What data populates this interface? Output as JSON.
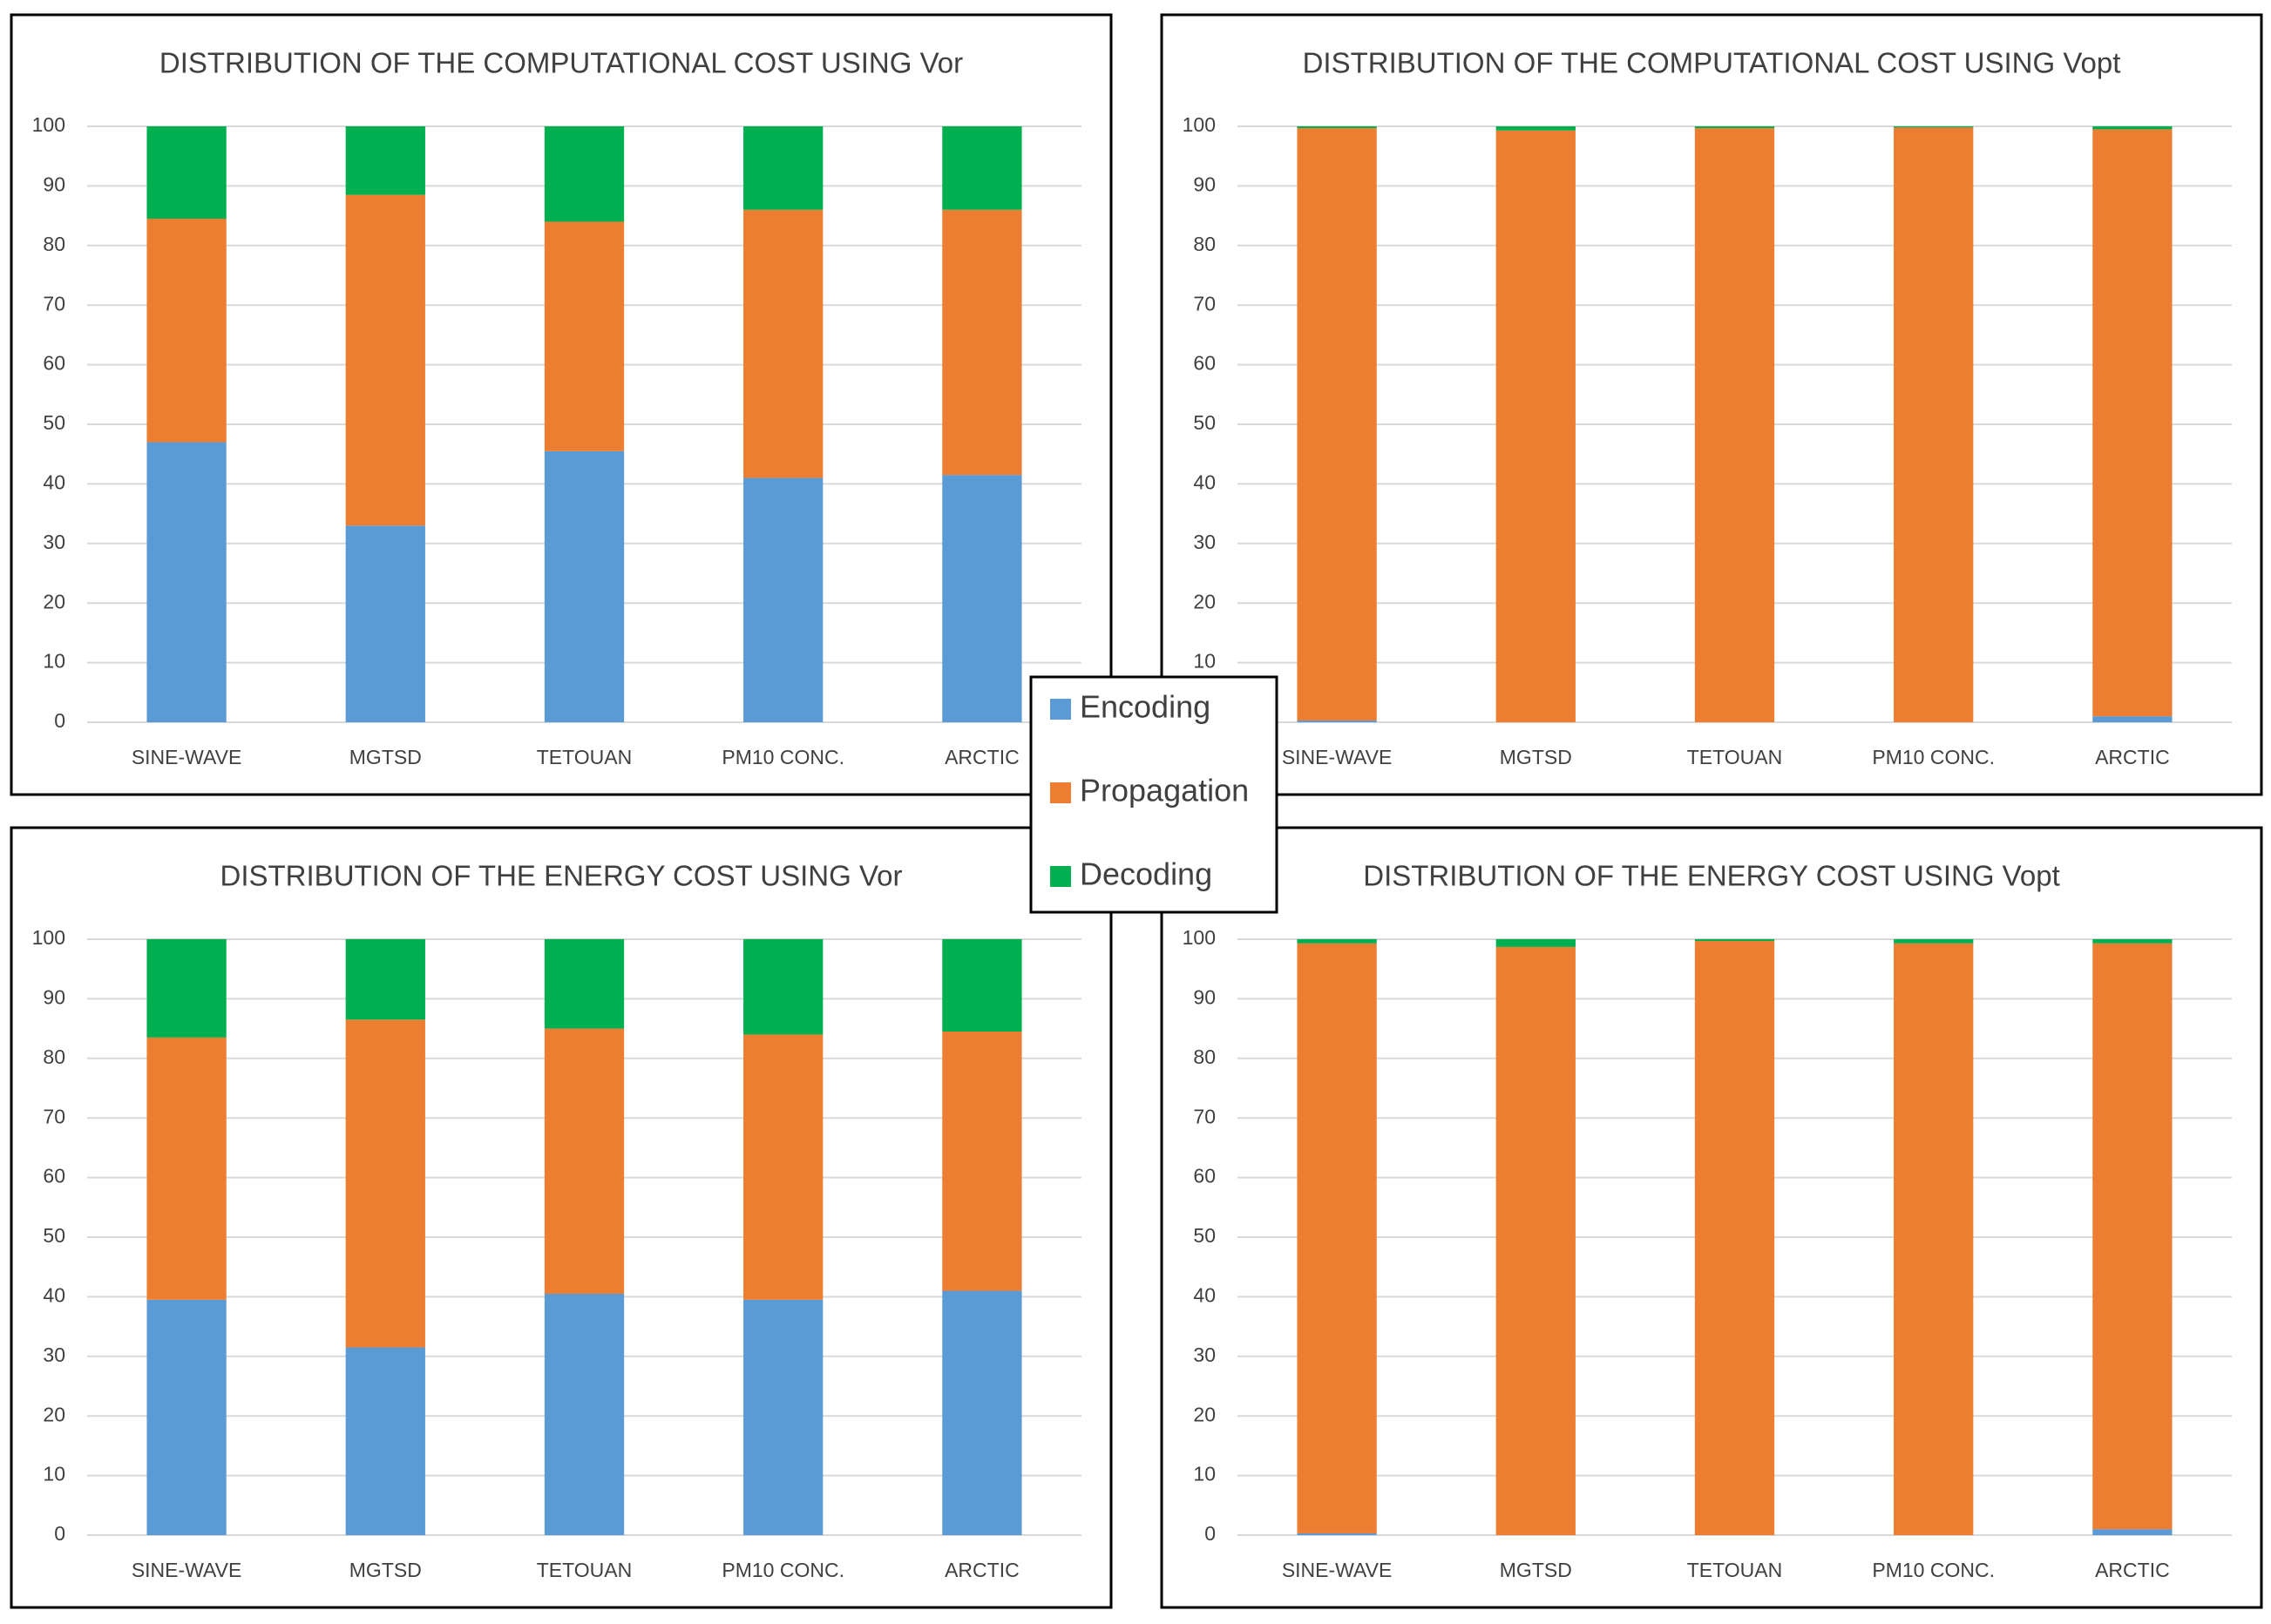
{
  "chart_data": [
    {
      "type": "bar",
      "stacked": true,
      "title": "DISTRIBUTION OF THE COMPUTATIONAL COST USING Vor",
      "categories": [
        "SINE-WAVE",
        "MGTSD",
        "TETOUAN",
        "PM10 CONC.",
        "ARCTIC"
      ],
      "series": [
        {
          "name": "Encoding",
          "color": "#5b9bd5",
          "values": [
            47,
            33,
            45.5,
            41,
            41.5
          ]
        },
        {
          "name": "Propagation",
          "color": "#ed7d31",
          "values": [
            37.5,
            55.5,
            38.5,
            45,
            44.5
          ]
        },
        {
          "name": "Decoding",
          "color": "#00b050",
          "values": [
            15.5,
            11.5,
            16,
            14,
            14
          ]
        }
      ],
      "ylim": [
        0,
        100
      ],
      "yticks": [
        0,
        10,
        20,
        30,
        40,
        50,
        60,
        70,
        80,
        90,
        100
      ],
      "grid": true
    },
    {
      "type": "bar",
      "stacked": true,
      "title": "DISTRIBUTION OF THE COMPUTATIONAL COST USING Vopt",
      "categories": [
        "SINE-WAVE",
        "MGTSD",
        "TETOUAN",
        "PM10 CONC.",
        "ARCTIC"
      ],
      "series": [
        {
          "color": "#5b9bd5",
          "values": [
            0.3,
            0,
            0,
            0,
            1
          ]
        },
        {
          "color": "#ed7d31",
          "values": [
            99.4,
            99.3,
            99.7,
            99.8,
            98.5
          ]
        },
        {
          "color": "#00b050",
          "values": [
            0.3,
            0.7,
            0.3,
            0.2,
            0.5
          ]
        }
      ],
      "ylim": [
        0,
        100
      ],
      "yticks": [
        0,
        10,
        20,
        30,
        40,
        50,
        60,
        70,
        80,
        90,
        100
      ],
      "grid": true
    },
    {
      "type": "bar",
      "stacked": true,
      "title": "DISTRIBUTION OF THE ENERGY COST USING Vor",
      "categories": [
        "SINE-WAVE",
        "MGTSD",
        "TETOUAN",
        "PM10 CONC.",
        "ARCTIC"
      ],
      "series": [
        {
          "color": "#5b9bd5",
          "values": [
            39.5,
            31.5,
            40.5,
            39.5,
            41
          ]
        },
        {
          "color": "#ed7d31",
          "values": [
            44,
            55,
            44.5,
            44.5,
            43.5
          ]
        },
        {
          "color": "#00b050",
          "values": [
            16.5,
            13.5,
            15,
            16,
            15.5
          ]
        }
      ],
      "ylim": [
        0,
        100
      ],
      "yticks": [
        0,
        10,
        20,
        30,
        40,
        50,
        60,
        70,
        80,
        90,
        100
      ],
      "grid": true
    },
    {
      "type": "bar",
      "stacked": true,
      "title": "DISTRIBUTION OF THE ENERGY COST USING Vopt",
      "categories": [
        "SINE-WAVE",
        "MGTSD",
        "TETOUAN",
        "PM10 CONC.",
        "ARCTIC"
      ],
      "series": [
        {
          "color": "#5b9bd5",
          "values": [
            0.3,
            0,
            0,
            0,
            1
          ]
        },
        {
          "color": "#ed7d31",
          "values": [
            99,
            98.7,
            99.7,
            99.3,
            98.3
          ]
        },
        {
          "color": "#00b050",
          "values": [
            0.7,
            1.3,
            0.3,
            0.7,
            0.7
          ]
        }
      ],
      "ylim": [
        0,
        100
      ],
      "yticks": [
        0,
        10,
        20,
        30,
        40,
        50,
        60,
        70,
        80,
        90,
        100
      ],
      "grid": true
    }
  ]
}
